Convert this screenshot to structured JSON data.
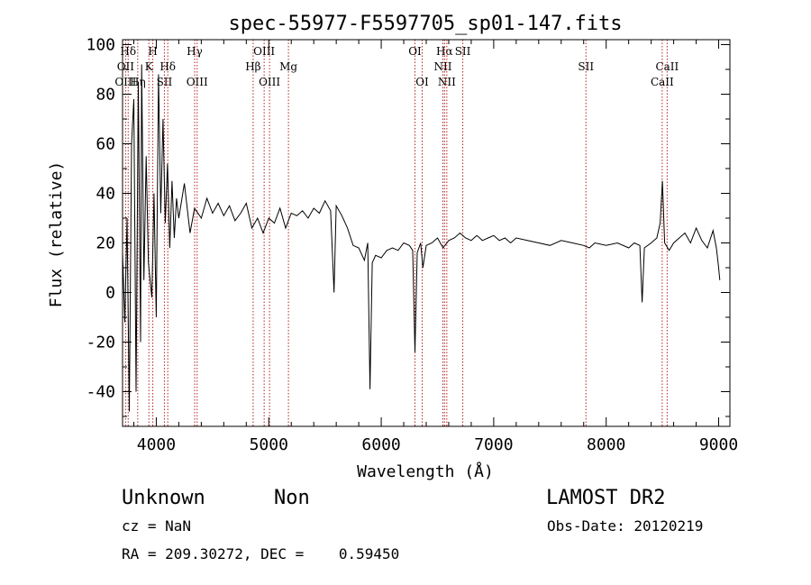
{
  "chart_data": {
    "type": "line",
    "title": "spec-55977-F5597705_sp01-147.fits",
    "xlabel": "Wavelength (Å)",
    "ylabel": "Flux (relative)",
    "xlim": [
      3700,
      9100
    ],
    "ylim": [
      -54,
      102
    ],
    "x_ticks": [
      4000,
      5000,
      6000,
      7000,
      8000,
      9000
    ],
    "y_ticks": [
      -40,
      -20,
      0,
      20,
      40,
      60,
      80,
      100
    ],
    "grid": false,
    "colors": {
      "spectrum": "#000000",
      "line_markers": "#b22222"
    },
    "spectrum": [
      [
        3700,
        16
      ],
      [
        3720,
        -12
      ],
      [
        3740,
        30
      ],
      [
        3760,
        -48
      ],
      [
        3780,
        60
      ],
      [
        3800,
        78
      ],
      [
        3820,
        -40
      ],
      [
        3840,
        85
      ],
      [
        3860,
        -20
      ],
      [
        3870,
        92
      ],
      [
        3890,
        5
      ],
      [
        3910,
        55
      ],
      [
        3930,
        12
      ],
      [
        3960,
        -2
      ],
      [
        3980,
        40
      ],
      [
        4000,
        -10
      ],
      [
        4020,
        88
      ],
      [
        4040,
        32
      ],
      [
        4060,
        70
      ],
      [
        4080,
        28
      ],
      [
        4100,
        52
      ],
      [
        4120,
        18
      ],
      [
        4140,
        45
      ],
      [
        4160,
        22
      ],
      [
        4180,
        38
      ],
      [
        4200,
        30
      ],
      [
        4250,
        44
      ],
      [
        4300,
        24
      ],
      [
        4340,
        34
      ],
      [
        4400,
        30
      ],
      [
        4450,
        38
      ],
      [
        4500,
        32
      ],
      [
        4550,
        36
      ],
      [
        4600,
        31
      ],
      [
        4650,
        35
      ],
      [
        4700,
        29
      ],
      [
        4750,
        32
      ],
      [
        4800,
        36
      ],
      [
        4850,
        26
      ],
      [
        4900,
        30
      ],
      [
        4950,
        24
      ],
      [
        5000,
        30
      ],
      [
        5050,
        28
      ],
      [
        5100,
        34
      ],
      [
        5150,
        26
      ],
      [
        5200,
        32
      ],
      [
        5250,
        31
      ],
      [
        5300,
        33
      ],
      [
        5350,
        30
      ],
      [
        5400,
        34
      ],
      [
        5450,
        32
      ],
      [
        5500,
        37
      ],
      [
        5550,
        33
      ],
      [
        5580,
        0
      ],
      [
        5600,
        35
      ],
      [
        5650,
        31
      ],
      [
        5700,
        26
      ],
      [
        5750,
        19
      ],
      [
        5800,
        18
      ],
      [
        5850,
        13
      ],
      [
        5880,
        20
      ],
      [
        5900,
        -39
      ],
      [
        5920,
        12
      ],
      [
        5950,
        15
      ],
      [
        6000,
        14
      ],
      [
        6050,
        17
      ],
      [
        6100,
        18
      ],
      [
        6150,
        17
      ],
      [
        6200,
        20
      ],
      [
        6250,
        19
      ],
      [
        6280,
        17
      ],
      [
        6300,
        -24
      ],
      [
        6320,
        16
      ],
      [
        6350,
        20
      ],
      [
        6370,
        10
      ],
      [
        6400,
        19
      ],
      [
        6450,
        20
      ],
      [
        6500,
        22
      ],
      [
        6550,
        18
      ],
      [
        6600,
        21
      ],
      [
        6650,
        22
      ],
      [
        6700,
        24
      ],
      [
        6750,
        22
      ],
      [
        6800,
        21
      ],
      [
        6850,
        23
      ],
      [
        6900,
        21
      ],
      [
        6950,
        22
      ],
      [
        7000,
        23
      ],
      [
        7050,
        21
      ],
      [
        7100,
        22
      ],
      [
        7150,
        20
      ],
      [
        7200,
        22
      ],
      [
        7300,
        21
      ],
      [
        7400,
        20
      ],
      [
        7500,
        19
      ],
      [
        7600,
        21
      ],
      [
        7700,
        20
      ],
      [
        7800,
        19
      ],
      [
        7850,
        18
      ],
      [
        7900,
        20
      ],
      [
        8000,
        19
      ],
      [
        8100,
        20
      ],
      [
        8200,
        18
      ],
      [
        8250,
        20
      ],
      [
        8300,
        19
      ],
      [
        8320,
        -4
      ],
      [
        8340,
        18
      ],
      [
        8400,
        20
      ],
      [
        8450,
        22
      ],
      [
        8480,
        28
      ],
      [
        8500,
        45
      ],
      [
        8520,
        20
      ],
      [
        8560,
        17
      ],
      [
        8600,
        20
      ],
      [
        8650,
        22
      ],
      [
        8700,
        24
      ],
      [
        8750,
        20
      ],
      [
        8800,
        26
      ],
      [
        8850,
        21
      ],
      [
        8900,
        18
      ],
      [
        8950,
        25
      ],
      [
        8980,
        18
      ],
      [
        9000,
        10
      ],
      [
        9010,
        5
      ]
    ],
    "line_markers": [
      {
        "label": "Hδ",
        "x": 3750,
        "level": 1
      },
      {
        "label": "OII",
        "x": 3727,
        "level": 2
      },
      {
        "label": "OIII",
        "x": 3727,
        "level": 3
      },
      {
        "label": "Hη",
        "x": 3835,
        "level": 3
      },
      {
        "label": "H",
        "x": 3969,
        "level": 1
      },
      {
        "label": "K",
        "x": 3934,
        "level": 2
      },
      {
        "label": "Hδ",
        "x": 4102,
        "level": 2
      },
      {
        "label": "SII",
        "x": 4072,
        "level": 3
      },
      {
        "label": "Hγ",
        "x": 4341,
        "level": 1
      },
      {
        "label": "OIII",
        "x": 4363,
        "level": 3
      },
      {
        "label": "OIII",
        "x": 4959,
        "level": 1
      },
      {
        "label": "Hβ",
        "x": 4861,
        "level": 2
      },
      {
        "label": "OIII",
        "x": 5007,
        "level": 3
      },
      {
        "label": "Mg",
        "x": 5175,
        "level": 2
      },
      {
        "label": "OI",
        "x": 6300,
        "level": 1
      },
      {
        "label": "OI",
        "x": 6364,
        "level": 3
      },
      {
        "label": "Hα",
        "x": 6563,
        "level": 1
      },
      {
        "label": "NII",
        "x": 6548,
        "level": 2
      },
      {
        "label": "NII",
        "x": 6583,
        "level": 3
      },
      {
        "label": "SII",
        "x": 6725,
        "level": 1
      },
      {
        "label": "SII",
        "x": 7820,
        "level": 2
      },
      {
        "label": "CaII",
        "x": 8542,
        "level": 2
      },
      {
        "label": "CaII",
        "x": 8498,
        "level": 3
      }
    ]
  },
  "footer": {
    "class": "Unknown",
    "subclass": "Non",
    "survey": "LAMOST DR2",
    "cz": "cz = NaN",
    "obs_date": "Obs-Date: 20120219",
    "coords": "RA = 209.30272, DEC =    0.59450"
  }
}
